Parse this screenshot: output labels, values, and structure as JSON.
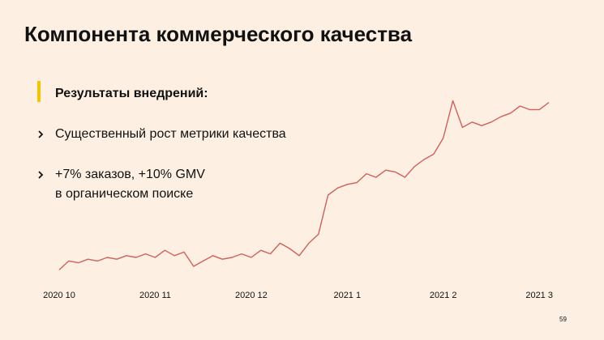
{
  "header": {
    "title": "Компонента коммерческого качества"
  },
  "section": {
    "heading": "Результаты внедрений:",
    "bullets": [
      {
        "lines": [
          "Существенный рост метрики качества"
        ]
      },
      {
        "lines": [
          "+7% заказов, +10% GMV",
          "в органическом поиске"
        ]
      }
    ]
  },
  "footer": {
    "page_number": "59"
  },
  "chart_data": {
    "type": "line",
    "color": "#d0605a",
    "ylim": [
      0,
      100
    ],
    "categories": [
      "2020 10",
      null,
      null,
      null,
      null,
      null,
      null,
      null,
      null,
      null,
      "2020 11",
      null,
      null,
      null,
      null,
      null,
      null,
      null,
      null,
      null,
      "2020 12",
      null,
      null,
      null,
      null,
      null,
      null,
      null,
      null,
      null,
      "2021 1",
      null,
      null,
      null,
      null,
      null,
      null,
      null,
      null,
      null,
      "2021 2",
      null,
      null,
      null,
      null,
      null,
      null,
      null,
      null,
      null,
      "2021 3",
      null
    ],
    "values": [
      3,
      8,
      7,
      9,
      8,
      10,
      9,
      11,
      10,
      12,
      10,
      14,
      11,
      13,
      5,
      8,
      11,
      9,
      10,
      12,
      10,
      14,
      12,
      18,
      15,
      11,
      18,
      23,
      45,
      49,
      51,
      52,
      57,
      55,
      59,
      58,
      55,
      61,
      65,
      68,
      77,
      98,
      83,
      86,
      84,
      86,
      89,
      91,
      95,
      93,
      93,
      97
    ]
  }
}
